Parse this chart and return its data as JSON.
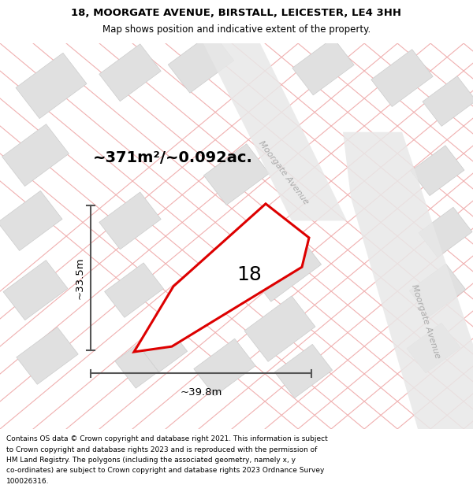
{
  "title_line1": "18, MOORGATE AVENUE, BIRSTALL, LEICESTER, LE4 3HH",
  "title_line2": "Map shows position and indicative extent of the property.",
  "area_label": "~371m²/~0.092ac.",
  "property_number": "18",
  "dim_width": "~39.8m",
  "dim_height": "~33.5m",
  "street_label_diag": "Moorgate Avenue",
  "street_label_vert": "Moorgate Avenue",
  "footer_lines": [
    "Contains OS data © Crown copyright and database right 2021. This information is subject",
    "to Crown copyright and database rights 2023 and is reproduced with the permission of",
    "HM Land Registry. The polygons (including the associated geometry, namely x, y",
    "co-ordinates) are subject to Crown copyright and database rights 2023 Ordnance Survey",
    "100026316."
  ],
  "bg_color": "#ffffff",
  "building_color": "#e0e0e0",
  "building_edge": "#cccccc",
  "road_fill": "#e8e8e8",
  "grid_color": "#f0b0b0",
  "property_fill": "#ffffff",
  "property_edge": "#dd0000",
  "dim_line_color": "#555555",
  "street_color": "#aaaaaa",
  "title_fontsize": 9.5,
  "subtitle_fontsize": 8.5,
  "area_fontsize": 14,
  "number_fontsize": 18,
  "footer_fontsize": 6.5,
  "street_fontsize": 8,
  "dim_fontsize": 9.5
}
